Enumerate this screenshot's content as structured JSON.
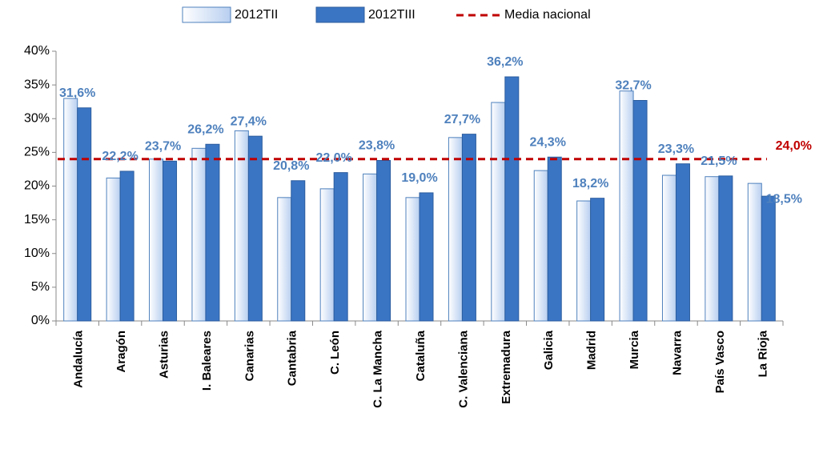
{
  "chart_data": {
    "type": "bar",
    "categories": [
      "Andalucía",
      "Aragón",
      "Asturias",
      "I. Baleares",
      "Canarias",
      "Cantabria",
      "C. León",
      "C. La Mancha",
      "Cataluña",
      "C. Valenciana",
      "Extremadura",
      "Galicia",
      "Madrid",
      "Murcia",
      "Navarra",
      "País Vasco",
      "La Rioja"
    ],
    "series": [
      {
        "name": "2012TII",
        "color": "#c6d9f1",
        "values": [
          33.0,
          21.2,
          24.0,
          25.6,
          28.2,
          18.3,
          19.6,
          21.8,
          18.3,
          27.2,
          32.4,
          22.3,
          17.8,
          34.1,
          21.6,
          21.4,
          20.4
        ]
      },
      {
        "name": "2012TIII",
        "color": "#3a75c4",
        "values": [
          31.6,
          22.2,
          23.7,
          26.2,
          27.4,
          20.8,
          22.0,
          23.8,
          19.0,
          27.7,
          36.2,
          24.3,
          18.2,
          32.7,
          23.3,
          21.5,
          18.5
        ],
        "value_labels": [
          "31,6%",
          "22,2%",
          "23,7%",
          "26,2%",
          "27,4%",
          "20,8%",
          "22,0%",
          "23,8%",
          "19,0%",
          "27,7%",
          "36,2%",
          "24,3%",
          "18,2%",
          "32,7%",
          "23,3%",
          "21,5%",
          "18,5%"
        ]
      }
    ],
    "reference_line": {
      "name": "Media nacional",
      "value": 24.0,
      "value_label": "24,0%",
      "color": "#c00000"
    },
    "ylim": [
      0,
      40
    ],
    "yticks": [
      {
        "value": 0,
        "label": "0%"
      },
      {
        "value": 5,
        "label": "5%"
      },
      {
        "value": 10,
        "label": "10%"
      },
      {
        "value": 15,
        "label": "15%"
      },
      {
        "value": 20,
        "label": "20%"
      },
      {
        "value": 25,
        "label": "25%"
      },
      {
        "value": 30,
        "label": "30%"
      },
      {
        "value": 35,
        "label": "35%"
      },
      {
        "value": 40,
        "label": "40%"
      }
    ],
    "grid": false
  }
}
